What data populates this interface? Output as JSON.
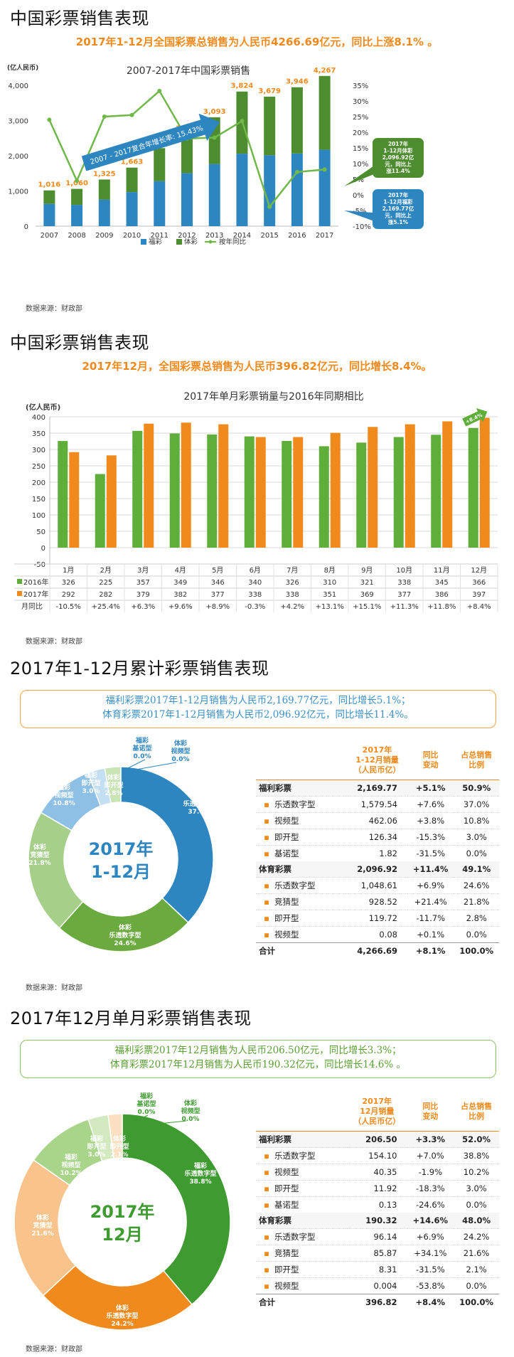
{
  "sections": {
    "s1_title": "中国彩票销售表现",
    "s1_headline": "2017年1-12月全国彩票总销售为人民币4266.69亿元，同比上涨8.1% 。",
    "s2_title": "中国彩票销售表现",
    "s2_headline": "2017年12月，全国彩票总销售为人民币396.82亿元，同比增长8.4%。",
    "s3_title": "2017年1-12月累计彩票销售表现",
    "s4_title": "2017年12月单月彩票销售表现",
    "source": "数据来源：财政部"
  },
  "colors": {
    "welfare_blue": "#2E86C1",
    "sports_green": "#4E8D2F",
    "yoy_line": "#70B84A",
    "orange": "#F08A1C"
  },
  "chart_data": [
    {
      "type": "bar",
      "title": "2007-2017年中国彩票销售",
      "y_unit_label": "(亿人民币)",
      "categories": [
        "2007",
        "2008",
        "2009",
        "2010",
        "2011",
        "2012",
        "2013",
        "2014",
        "2015",
        "2016",
        "2017"
      ],
      "totals": [
        1016,
        1060,
        1325,
        1663,
        2216,
        2615,
        3093,
        3824,
        3679,
        3946,
        4267
      ],
      "total_labels": [
        "1,016",
        "1,060",
        "1,325",
        "1,663",
        "2,216",
        "2,615",
        "3,093",
        "3,824",
        "3,679",
        "3,946",
        "4,267"
      ],
      "series": [
        {
          "name": "福彩",
          "values": [
            632,
            604,
            756,
            968,
            1278,
            1510,
            1765,
            2059,
            2015,
            2065,
            2170
          ]
        },
        {
          "name": "体彩",
          "values": [
            384,
            456,
            569,
            695,
            938,
            1105,
            1328,
            1765,
            1664,
            1881,
            2097
          ]
        },
        {
          "name": "按年同比",
          "values": [
            24,
            4.5,
            25,
            25.5,
            33.2,
            18.0,
            18.3,
            23.6,
            -3.8,
            7.3,
            8.1
          ],
          "axis": "right"
        }
      ],
      "ylim": [
        0,
        4000
      ],
      "y_ticks": [
        "0",
        "1,000",
        "2,000",
        "3,000",
        "4,000"
      ],
      "y2lim": [
        -10,
        35
      ],
      "y2_ticks": [
        "-10%",
        "-5%",
        "0%",
        "5%",
        "10%",
        "15%",
        "20%",
        "25%",
        "30%",
        "35%"
      ],
      "arrow_label": "2007 - 2017复合年增长率: 15.43%",
      "callout_sports": [
        "2017年",
        "1-12月体彩",
        "2,096.92亿",
        "元，同比上",
        "涨11.4%"
      ],
      "callout_welfare": [
        "2017年",
        "1-12月福彩",
        "2,169.77亿",
        "元，同比上",
        "涨5.1%"
      ]
    },
    {
      "type": "bar",
      "title": "2017年单月彩票销量与2016年同期相比",
      "y_unit_label": "(亿人民币)",
      "categories": [
        "1月",
        "2月",
        "3月",
        "4月",
        "5月",
        "6月",
        "7月",
        "8月",
        "9月",
        "10月",
        "11月",
        "12月"
      ],
      "series": [
        {
          "name": "2016年",
          "values": [
            326,
            225,
            357,
            349,
            346,
            340,
            326,
            310,
            321,
            338,
            345,
            366
          ]
        },
        {
          "name": "2017年",
          "values": [
            292,
            282,
            379,
            382,
            377,
            338,
            338,
            351,
            369,
            377,
            386,
            397
          ]
        }
      ],
      "row_2016": [
        "326",
        "225",
        "357",
        "349",
        "346",
        "340",
        "326",
        "310",
        "321",
        "338",
        "345",
        "366"
      ],
      "row_2017": [
        "292",
        "282",
        "379",
        "382",
        "377",
        "338",
        "338",
        "351",
        "369",
        "377",
        "386",
        "397"
      ],
      "row_yoy_label": "月同比",
      "row_yoy": [
        "-10.5%",
        "+25.4%",
        "+6.3%",
        "+9.6%",
        "+8.9%",
        "-0.3%",
        "+4.2%",
        "+13.1%",
        "+15.1%",
        "+11.3%",
        "+11.8%",
        "+8.4%"
      ],
      "ylim": [
        -50,
        400
      ],
      "y_ticks": [
        "-50",
        "0",
        "50",
        "100",
        "150",
        "200",
        "250",
        "300",
        "350",
        "400"
      ],
      "arrow_label": "+8.4%"
    },
    {
      "type": "pie",
      "center_text": [
        "2017年",
        "1-12月"
      ],
      "slices": [
        {
          "name": "福彩乐透数字型",
          "label": [
            "福彩",
            "乐透数字型",
            "37.0%"
          ],
          "value": 37.0,
          "color": "#2E86C1"
        },
        {
          "name": "体彩乐透数字型",
          "label": [
            "体彩",
            "乐透数字型",
            "24.6%"
          ],
          "value": 24.6,
          "color": "#6BAA3E"
        },
        {
          "name": "体彩竞猜型",
          "label": [
            "体彩",
            "竞猜型",
            "21.8%"
          ],
          "value": 21.8,
          "color": "#A6D08A"
        },
        {
          "name": "福彩视频型",
          "label": [
            "福彩",
            "视频型",
            "10.8%"
          ],
          "value": 10.8,
          "color": "#8DC0E4"
        },
        {
          "name": "福彩即开型",
          "label": [
            "福彩",
            "即开型",
            "3.0%"
          ],
          "value": 3.0,
          "color": "#C4DEF2"
        },
        {
          "name": "体彩即开型",
          "label": [
            "体彩",
            "即开型",
            "2.8%"
          ],
          "value": 2.8,
          "color": "#C9E4B5"
        },
        {
          "name": "福彩基诺型",
          "label": [
            "福彩",
            "基诺型",
            "0.0%"
          ],
          "value": 0.0,
          "color": "#2E86C1"
        },
        {
          "name": "体彩视频型",
          "label": [
            "体彩",
            "视频型",
            "0.0%"
          ],
          "value": 0.0,
          "color": "#2E86C1"
        }
      ]
    },
    {
      "type": "pie",
      "center_text": [
        "2017年",
        "12月"
      ],
      "slices": [
        {
          "name": "福彩乐透数字型",
          "label": [
            "福彩",
            "乐透数字型",
            "38.8%"
          ],
          "value": 38.8,
          "color": "#3E9B2F"
        },
        {
          "name": "体彩乐透数字型",
          "label": [
            "体彩",
            "乐透数字型",
            "24.2%"
          ],
          "value": 24.2,
          "color": "#F08A1C"
        },
        {
          "name": "体彩竞猜型",
          "label": [
            "体彩",
            "竞猜型",
            "21.6%"
          ],
          "value": 21.6,
          "color": "#F8C48C"
        },
        {
          "name": "福彩视频型",
          "label": [
            "福彩",
            "视频型",
            "10.2%"
          ],
          "value": 10.2,
          "color": "#A9D58B"
        },
        {
          "name": "福彩即开型",
          "label": [
            "福彩",
            "即开型",
            "3.0%"
          ],
          "value": 3.0,
          "color": "#D3EAC1"
        },
        {
          "name": "体彩即开型",
          "label": [
            "体彩",
            "即开型",
            "2.1%"
          ],
          "value": 2.1,
          "color": "#FBE0C2"
        },
        {
          "name": "福彩基诺型",
          "label": [
            "福彩",
            "基诺型",
            "0.0%"
          ],
          "value": 0.0,
          "color": "#3E9B2F"
        },
        {
          "name": "体彩视频型",
          "label": [
            "体彩",
            "视频型",
            "0.0%"
          ],
          "value": 0.0,
          "color": "#3E9B2F"
        }
      ]
    }
  ],
  "note1": {
    "line1": "福利彩票2017年1-12月销售为人民币2,169.77亿元，同比增长5.1%；",
    "line2": "体育彩票2017年1-12月销售为人民币2,096.92亿元，同比增长11.4%。"
  },
  "note2": {
    "line1": "福利彩票2017年12月销售为人民币206.50亿元，同比增长3.3%；",
    "line2": "体育彩票2017年12月销售为人民币190.32亿元，同比增长14.6% 。"
  },
  "table1": {
    "headers": [
      "2017年\n1-12月销量\n（人民币亿）",
      "同比\n变动",
      "占总销售\n比例"
    ],
    "rows": [
      {
        "kind": "group",
        "label": "福利彩票",
        "v": "2,169.77",
        "c": "+5.1%",
        "p": "50.9%"
      },
      {
        "kind": "sub",
        "label": "乐透数字型",
        "v": "1,579.54",
        "c": "+7.6%",
        "p": "37.0%"
      },
      {
        "kind": "sub",
        "label": "视频型",
        "v": "462.06",
        "c": "+3.8%",
        "p": "10.8%"
      },
      {
        "kind": "sub",
        "label": "即开型",
        "v": "126.34",
        "c": "-15.3%",
        "p": "3.0%"
      },
      {
        "kind": "sub",
        "label": "基诺型",
        "v": "1.82",
        "c": "-31.5%",
        "p": "0.0%"
      },
      {
        "kind": "group",
        "label": "体育彩票",
        "v": "2,096.92",
        "c": "+11.4%",
        "p": "49.1%"
      },
      {
        "kind": "sub",
        "label": "乐透数字型",
        "v": "1,048.61",
        "c": "+6.9%",
        "p": "24.6%"
      },
      {
        "kind": "sub",
        "label": "竞猜型",
        "v": "928.52",
        "c": "+21.4%",
        "p": "21.8%"
      },
      {
        "kind": "sub",
        "label": "即开型",
        "v": "119.72",
        "c": "-11.7%",
        "p": "2.8%"
      },
      {
        "kind": "sub",
        "label": "视频型",
        "v": "0.08",
        "c": "+0.1%",
        "p": "0.0%"
      },
      {
        "kind": "total",
        "label": "合计",
        "v": "4,266.69",
        "c": "+8.1%",
        "p": "100.0%"
      }
    ]
  },
  "table2": {
    "headers": [
      "2017年\n12月销量\n（人民币亿）",
      "同比\n变动",
      "占总销售\n比例"
    ],
    "rows": [
      {
        "kind": "group",
        "label": "福利彩票",
        "v": "206.50",
        "c": "+3.3%",
        "p": "52.0%"
      },
      {
        "kind": "sub",
        "label": "乐透数字型",
        "v": "154.10",
        "c": "+7.0%",
        "p": "38.8%"
      },
      {
        "kind": "sub",
        "label": "视频型",
        "v": "40.35",
        "c": "-1.9%",
        "p": "10.2%"
      },
      {
        "kind": "sub",
        "label": "即开型",
        "v": "11.92",
        "c": "-18.3%",
        "p": "3.0%"
      },
      {
        "kind": "sub",
        "label": "基诺型",
        "v": "0.13",
        "c": "-24.6%",
        "p": "0.0%"
      },
      {
        "kind": "group",
        "label": "体育彩票",
        "v": "190.32",
        "c": "+14.6%",
        "p": "48.0%"
      },
      {
        "kind": "sub",
        "label": "乐透数字型",
        "v": "96.14",
        "c": "+6.9%",
        "p": "24.2%"
      },
      {
        "kind": "sub",
        "label": "竞猜型",
        "v": "85.87",
        "c": "+34.1%",
        "p": "21.6%"
      },
      {
        "kind": "sub",
        "label": "即开型",
        "v": "8.31",
        "c": "-31.5%",
        "p": "2.1%"
      },
      {
        "kind": "sub",
        "label": "视频型",
        "v": "0.004",
        "c": "-53.8%",
        "p": "0.0%"
      },
      {
        "kind": "total",
        "label": "合计",
        "v": "396.82",
        "c": "+8.4%",
        "p": "100.0%"
      }
    ]
  }
}
